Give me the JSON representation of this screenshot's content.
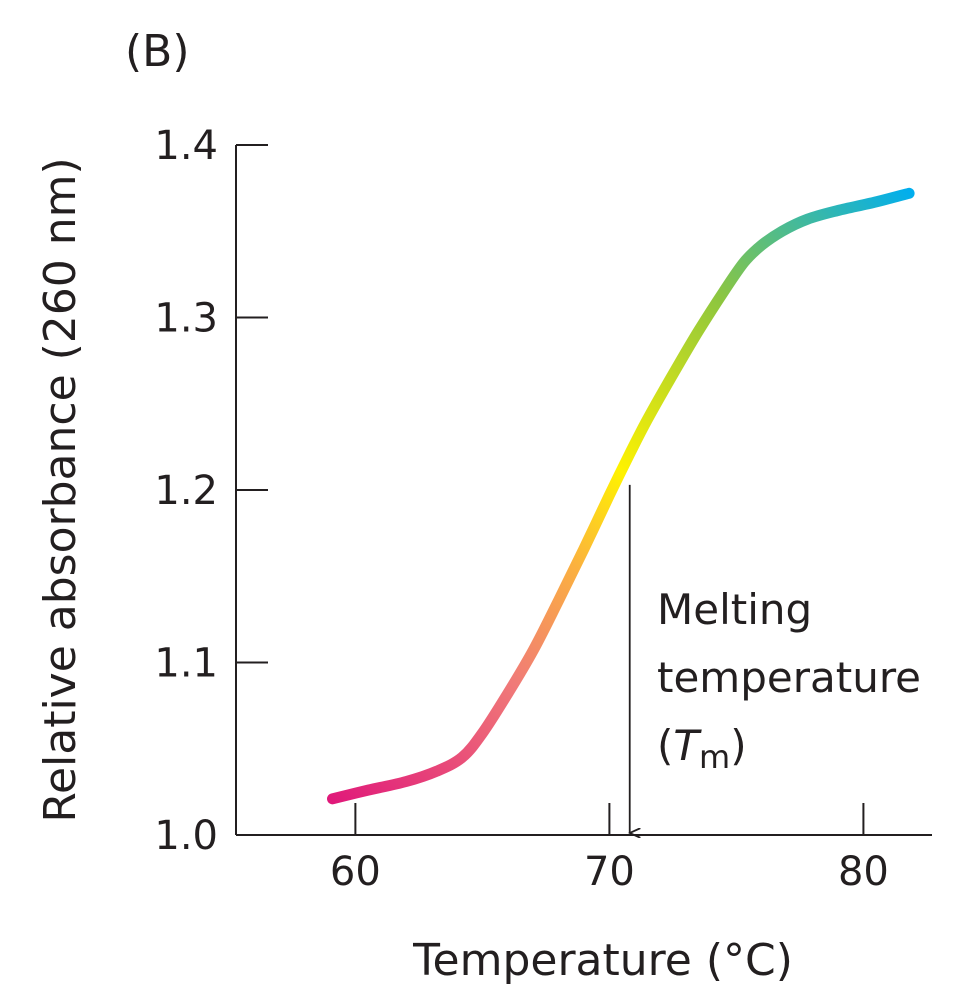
{
  "panel_label": "(B)",
  "colors": {
    "axis": "#231f20",
    "gradient": [
      "#e0197a",
      "#f07a78",
      "#fbb040",
      "#fff200",
      "#8dc63f",
      "#00aeef"
    ]
  },
  "chart_data": {
    "type": "line",
    "title": "",
    "xlabel": "Temperature (°C)",
    "ylabel": "Relative absorbance (260 nm)",
    "xlim": [
      55.3,
      82.7
    ],
    "ylim": [
      1.0,
      1.4
    ],
    "xticks": [
      60,
      70,
      80
    ],
    "yticks": [
      1.0,
      1.1,
      1.2,
      1.3,
      1.4
    ],
    "x_tick_labels": [
      "60",
      "70",
      "80"
    ],
    "y_tick_labels": [
      "1.0",
      "1.1",
      "1.2",
      "1.3",
      "1.4"
    ],
    "grid": false,
    "series": [
      {
        "x": [
          59.1,
          60.5,
          62.0,
          63.2,
          64.2,
          65.0,
          66.0,
          67.0,
          68.0,
          69.0,
          70.0,
          70.8,
          71.5,
          72.5,
          73.5,
          74.5,
          75.3,
          76.0,
          76.8,
          77.8,
          79.0,
          80.5,
          81.8
        ],
        "y": [
          1.021,
          1.026,
          1.031,
          1.037,
          1.045,
          1.059,
          1.082,
          1.107,
          1.136,
          1.166,
          1.197,
          1.221,
          1.241,
          1.267,
          1.292,
          1.315,
          1.332,
          1.342,
          1.35,
          1.357,
          1.362,
          1.367,
          1.372
        ]
      }
    ],
    "annotation": {
      "x": 70.8,
      "y": 1.203,
      "line1": "Melting",
      "line2": "temperature",
      "symbol_open": "(",
      "symbol_T": "T",
      "symbol_sub": "m",
      "symbol_close": ")"
    }
  }
}
